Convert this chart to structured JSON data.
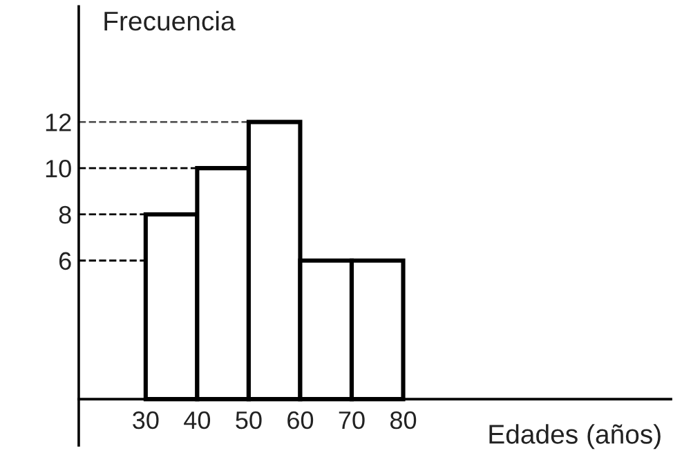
{
  "chart_data": {
    "type": "histogram",
    "xlabel": "Edades (años)",
    "ylabel": "Frecuencia",
    "bins": [
      30,
      40,
      50,
      60,
      70,
      80
    ],
    "values": [
      8,
      10,
      12,
      6,
      6
    ],
    "color": "#ffffff",
    "xlim": [
      17,
      132
    ],
    "ylim": [
      -2,
      17
    ],
    "xticks": [
      30,
      40,
      50,
      60,
      70,
      80
    ],
    "yticks": [
      6,
      8,
      10,
      12
    ],
    "ref_lines": [
      {
        "axis": "y",
        "value": 12,
        "color": "#555555",
        "line_style": "dashed"
      },
      {
        "axis": "y",
        "value": 10,
        "color": "#000000",
        "line_style": "dashed"
      },
      {
        "axis": "y",
        "value": 8,
        "color": "#000000",
        "line_style": "dashed"
      },
      {
        "axis": "y",
        "value": 6,
        "color": "#000000",
        "line_style": "dashed"
      }
    ],
    "grid": false,
    "legend": false
  }
}
